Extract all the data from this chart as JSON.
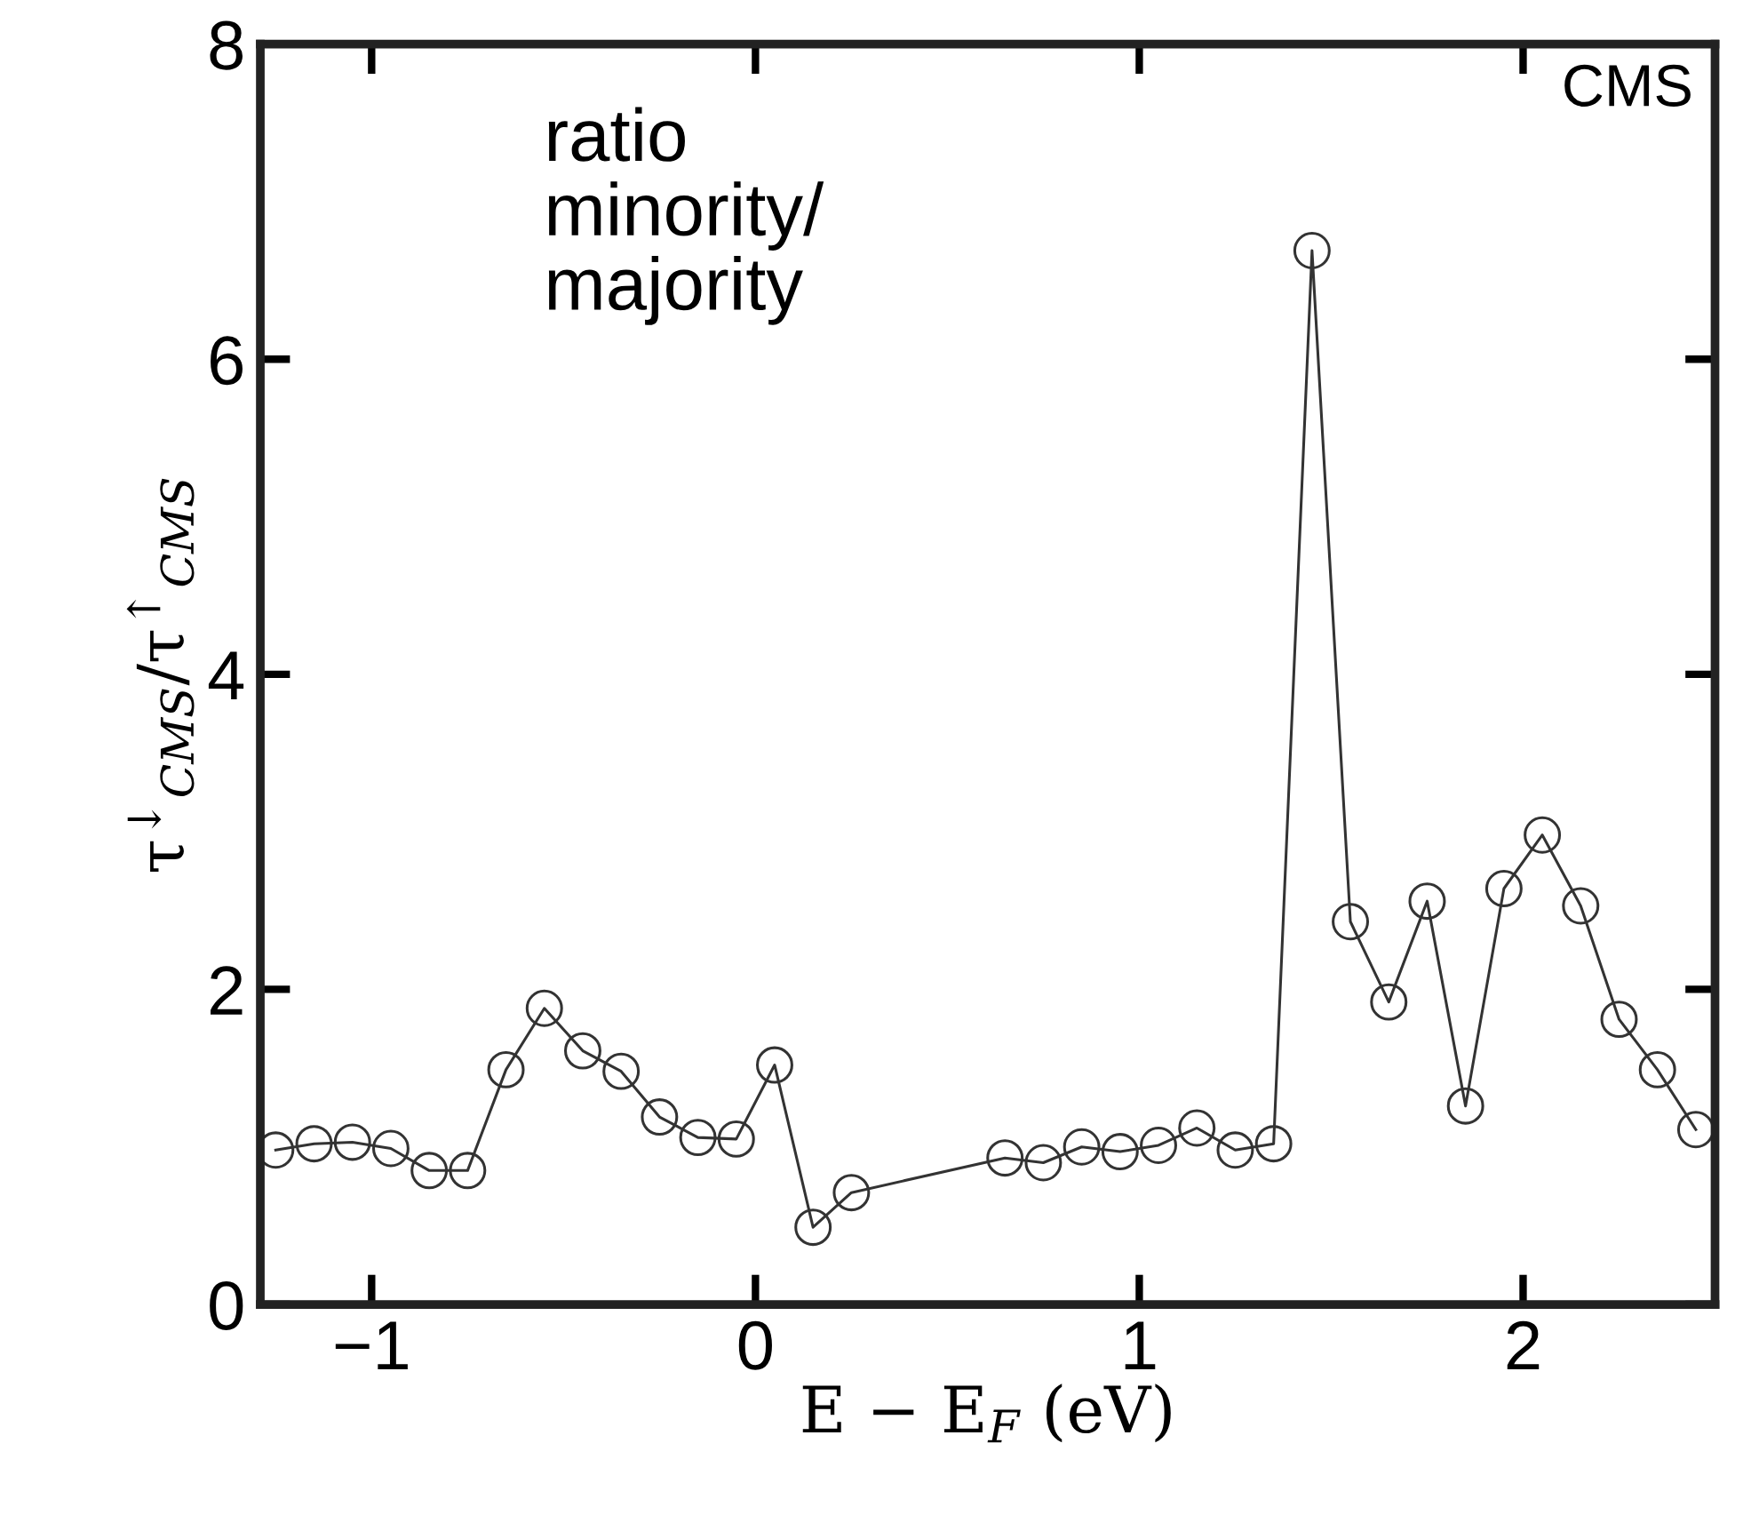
{
  "chart_data": {
    "type": "line",
    "xlabel": "E − E$_{F}$ (eV)",
    "ylabel": "τ$^{↓}$$_{CMS}$/τ$^{↑}$$_{CMS}$",
    "annotations": [
      "ratio\nminority/\nmajority",
      "CMS"
    ],
    "x": [
      -1.25,
      -1.15,
      -1.05,
      -0.95,
      -0.85,
      -0.75,
      -0.65,
      -0.55,
      -0.45,
      -0.35,
      -0.25,
      -0.15,
      -0.05,
      0.05,
      0.15,
      0.25,
      0.65,
      0.75,
      0.85,
      0.95,
      1.05,
      1.15,
      1.25,
      1.35,
      1.45,
      1.55,
      1.65,
      1.75,
      1.85,
      1.95,
      2.05,
      2.15,
      2.25,
      2.35,
      2.45
    ],
    "series": [
      {
        "color": "#333333",
        "values": [
          0.98,
          1.02,
          1.03,
          0.99,
          0.85,
          0.85,
          1.49,
          1.88,
          1.61,
          1.48,
          1.19,
          1.06,
          1.05,
          1.52,
          0.49,
          0.71,
          0.93,
          0.9,
          1.0,
          0.97,
          1.01,
          1.12,
          0.98,
          1.02,
          6.69,
          2.43,
          1.92,
          2.56,
          1.26,
          2.64,
          2.98,
          2.53,
          1.81,
          1.49,
          1.11
        ]
      }
    ],
    "xlim": [
      -1.29,
      2.5
    ],
    "ylim": [
      0,
      8
    ],
    "xticks": [
      {
        "value": -1,
        "label": "−1"
      },
      0,
      1,
      2
    ],
    "yticks": [
      0,
      2,
      4,
      6,
      8
    ],
    "marker": "circle",
    "line_style": "solid",
    "grid": false,
    "legend": false
  }
}
